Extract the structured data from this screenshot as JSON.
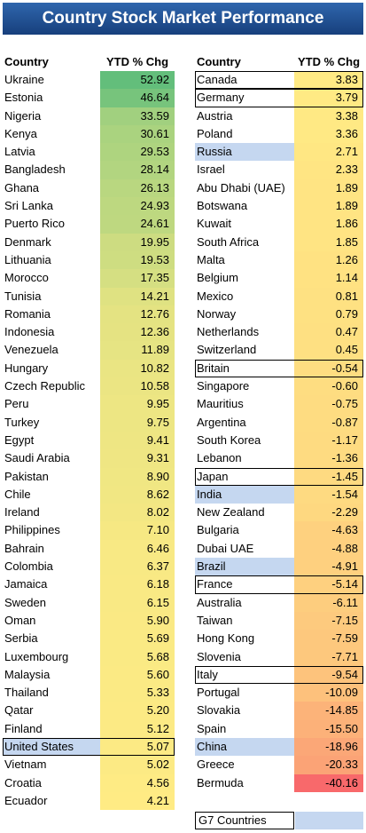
{
  "title": "Country Stock Market Performance",
  "legend": {
    "label": "G7 Countries",
    "color": "#c5d7f0"
  },
  "colors": {
    "g7_highlight": "#c5d7f0",
    "high": "#63be7b",
    "mid": "#ffeb84",
    "low": "#f8696b"
  },
  "chart_data": {
    "type": "table",
    "title": "Country Stock Market Performance",
    "columns": [
      "Country",
      "YTD % Chg"
    ],
    "left_table": [
      {
        "country": "Ukraine",
        "value": "52.92",
        "g7": false
      },
      {
        "country": "Estonia",
        "value": "46.64",
        "g7": false
      },
      {
        "country": "Nigeria",
        "value": "33.59",
        "g7": false
      },
      {
        "country": "Kenya",
        "value": "30.61",
        "g7": false
      },
      {
        "country": "Latvia",
        "value": "29.53",
        "g7": false
      },
      {
        "country": "Bangladesh",
        "value": "28.14",
        "g7": false
      },
      {
        "country": "Ghana",
        "value": "26.13",
        "g7": false
      },
      {
        "country": "Sri Lanka",
        "value": "24.93",
        "g7": false
      },
      {
        "country": "Puerto Rico",
        "value": "24.61",
        "g7": false
      },
      {
        "country": "Denmark",
        "value": "19.95",
        "g7": false
      },
      {
        "country": "Lithuania",
        "value": "19.53",
        "g7": false
      },
      {
        "country": "Morocco",
        "value": "17.35",
        "g7": false
      },
      {
        "country": "Tunisia",
        "value": "14.21",
        "g7": false
      },
      {
        "country": "Romania",
        "value": "12.76",
        "g7": false
      },
      {
        "country": "Indonesia",
        "value": "12.36",
        "g7": false
      },
      {
        "country": "Venezuela",
        "value": "11.89",
        "g7": false
      },
      {
        "country": "Hungary",
        "value": "10.82",
        "g7": false
      },
      {
        "country": "Czech Republic",
        "value": "10.58",
        "g7": false
      },
      {
        "country": "Peru",
        "value": "9.95",
        "g7": false
      },
      {
        "country": "Turkey",
        "value": "9.75",
        "g7": false
      },
      {
        "country": "Egypt",
        "value": "9.41",
        "g7": false
      },
      {
        "country": "Saudi Arabia",
        "value": "9.31",
        "g7": false
      },
      {
        "country": "Pakistan",
        "value": "8.90",
        "g7": false
      },
      {
        "country": "Chile",
        "value": "8.62",
        "g7": false
      },
      {
        "country": "Ireland",
        "value": "8.02",
        "g7": false
      },
      {
        "country": "Philippines",
        "value": "7.10",
        "g7": false
      },
      {
        "country": "Bahrain",
        "value": "6.46",
        "g7": false
      },
      {
        "country": "Colombia",
        "value": "6.37",
        "g7": false
      },
      {
        "country": "Jamaica",
        "value": "6.18",
        "g7": false
      },
      {
        "country": "Sweden",
        "value": "6.15",
        "g7": false
      },
      {
        "country": "Oman",
        "value": "5.90",
        "g7": false
      },
      {
        "country": "Serbia",
        "value": "5.69",
        "g7": false
      },
      {
        "country": "Luxembourg",
        "value": "5.68",
        "g7": false
      },
      {
        "country": "Malaysia",
        "value": "5.60",
        "g7": false
      },
      {
        "country": "Thailand",
        "value": "5.33",
        "g7": false
      },
      {
        "country": "Qatar",
        "value": "5.20",
        "g7": false
      },
      {
        "country": "Finland",
        "value": "5.12",
        "g7": false
      },
      {
        "country": "United States",
        "value": "5.07",
        "g7": true
      },
      {
        "country": "Vietnam",
        "value": "5.02",
        "g7": false
      },
      {
        "country": "Croatia",
        "value": "4.56",
        "g7": false
      },
      {
        "country": "Ecuador",
        "value": "4.21",
        "g7": false
      }
    ],
    "right_table": [
      {
        "country": "Canada",
        "value": "3.83",
        "g7": true
      },
      {
        "country": "Germany",
        "value": "3.79",
        "g7": true
      },
      {
        "country": "Austria",
        "value": "3.38",
        "g7": false
      },
      {
        "country": "Poland",
        "value": "3.36",
        "g7": false
      },
      {
        "country": "Russia",
        "value": "2.71",
        "g7": false,
        "highlight": true
      },
      {
        "country": "Israel",
        "value": "2.33",
        "g7": false
      },
      {
        "country": "Abu Dhabi (UAE)",
        "value": "1.89",
        "g7": false
      },
      {
        "country": "Botswana",
        "value": "1.89",
        "g7": false
      },
      {
        "country": "Kuwait",
        "value": "1.86",
        "g7": false
      },
      {
        "country": "South Africa",
        "value": "1.85",
        "g7": false
      },
      {
        "country": "Malta",
        "value": "1.26",
        "g7": false
      },
      {
        "country": "Belgium",
        "value": "1.14",
        "g7": false
      },
      {
        "country": "Mexico",
        "value": "0.81",
        "g7": false
      },
      {
        "country": "Norway",
        "value": "0.79",
        "g7": false
      },
      {
        "country": "Netherlands",
        "value": "0.47",
        "g7": false
      },
      {
        "country": "Switzerland",
        "value": "0.45",
        "g7": false
      },
      {
        "country": "Britain",
        "value": "-0.54",
        "g7": true
      },
      {
        "country": "Singapore",
        "value": "-0.60",
        "g7": false
      },
      {
        "country": "Mauritius",
        "value": "-0.75",
        "g7": false
      },
      {
        "country": "Argentina",
        "value": "-0.87",
        "g7": false
      },
      {
        "country": "South Korea",
        "value": "-1.17",
        "g7": false
      },
      {
        "country": "Lebanon",
        "value": "-1.36",
        "g7": false
      },
      {
        "country": "Japan",
        "value": "-1.45",
        "g7": true
      },
      {
        "country": "India",
        "value": "-1.54",
        "g7": false,
        "highlight": true
      },
      {
        "country": "New Zealand",
        "value": "-2.29",
        "g7": false
      },
      {
        "country": "Bulgaria",
        "value": "-4.63",
        "g7": false
      },
      {
        "country": "Dubai UAE",
        "value": "-4.88",
        "g7": false
      },
      {
        "country": "Brazil",
        "value": "-4.91",
        "g7": false,
        "highlight": true
      },
      {
        "country": "France",
        "value": "-5.14",
        "g7": true
      },
      {
        "country": "Australia",
        "value": "-6.11",
        "g7": false
      },
      {
        "country": "Taiwan",
        "value": "-7.15",
        "g7": false
      },
      {
        "country": "Hong Kong",
        "value": "-7.59",
        "g7": false
      },
      {
        "country": "Slovenia",
        "value": "-7.71",
        "g7": false
      },
      {
        "country": "Italy",
        "value": "-9.54",
        "g7": true
      },
      {
        "country": "Portugal",
        "value": "-10.09",
        "g7": false
      },
      {
        "country": "Slovakia",
        "value": "-14.85",
        "g7": false
      },
      {
        "country": "Spain",
        "value": "-15.50",
        "g7": false
      },
      {
        "country": "China",
        "value": "-18.96",
        "g7": false,
        "highlight": true
      },
      {
        "country": "Greece",
        "value": "-20.33",
        "g7": false
      },
      {
        "country": "Bermuda",
        "value": "-40.16",
        "g7": false
      }
    ]
  }
}
